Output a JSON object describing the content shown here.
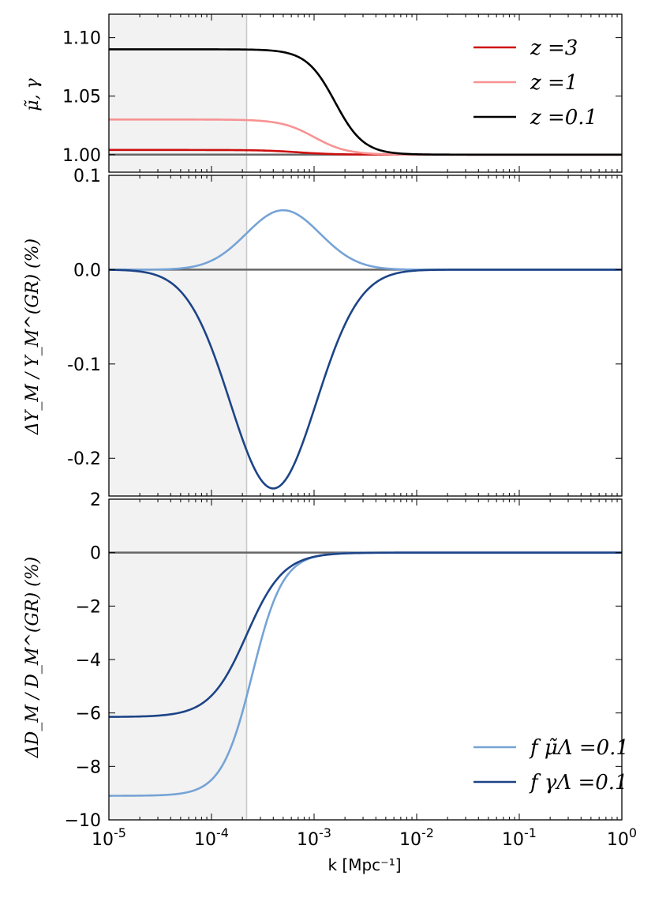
{
  "chart_data": [
    {
      "type": "line",
      "panel": "top",
      "ylabel": "μ̃, γ",
      "xscale": "log",
      "xlim": [
        1e-05,
        1
      ],
      "ylim": [
        0.985,
        1.12
      ],
      "yticks": [
        1.0,
        1.05,
        1.1
      ],
      "ytick_labels": [
        "1.00",
        "1.05",
        "1.10"
      ],
      "shaded_region_x": [
        1e-05,
        0.00022
      ],
      "reference_line_y": 1.0,
      "legend": {
        "position": "top-right"
      },
      "series": [
        {
          "name": "z=3",
          "legend_label": "z =3",
          "color": "#cc1010",
          "plateau": 1.004,
          "transition_k": 0.0007,
          "width": 0.35
        },
        {
          "name": "z=1",
          "legend_label": "z =1",
          "color": "#f79393",
          "plateau": 1.03,
          "transition_k": 0.001,
          "width": 0.32
        },
        {
          "name": "z=0.1",
          "legend_label": "z =0.1",
          "color": "#000000",
          "plateau": 1.09,
          "transition_k": 0.0016,
          "width": 0.28
        }
      ]
    },
    {
      "type": "line",
      "panel": "middle",
      "ylabel": "ΔY_M / Y_M^(GR) (%)",
      "xscale": "log",
      "xlim": [
        1e-05,
        1
      ],
      "ylim": [
        -0.24,
        0.1
      ],
      "yticks": [
        0.1,
        0.0,
        -0.1,
        -0.2
      ],
      "ytick_labels": [
        "0.1",
        "0.0",
        "-0.1",
        "-0.2"
      ],
      "shaded_region_x": [
        1e-05,
        0.00022
      ],
      "reference_line_y": 0.0,
      "series": [
        {
          "name": "f_μΛ=0.1",
          "color": "#76a3d6",
          "peak_value": 0.063,
          "peak_k": 0.0005,
          "width": 0.36
        },
        {
          "name": "f_γΛ=0.1",
          "color": "#1d4487",
          "peak_value": -0.232,
          "peak_k": 0.0004,
          "width": 0.42
        }
      ]
    },
    {
      "type": "line",
      "panel": "bottom",
      "xlabel": "k [Mpc⁻¹]",
      "ylabel": "ΔD_M / D_M^(GR) (%)",
      "xscale": "log",
      "xlim": [
        1e-05,
        1
      ],
      "ylim": [
        -10,
        2
      ],
      "yticks": [
        2,
        0,
        -2,
        -4,
        -6,
        -8,
        -10
      ],
      "ytick_labels": [
        "2",
        "0",
        "−2",
        "−4",
        "−6",
        "−8",
        "−10"
      ],
      "xtick_labels": [
        "10-5",
        "10-4",
        "10-3",
        "10-2",
        "10-1",
        "100"
      ],
      "shaded_region_x": [
        1e-05,
        0.00022
      ],
      "reference_line_y": 0.0,
      "legend": {
        "position": "bottom-right"
      },
      "series": [
        {
          "name": "f_μΛ=0.1",
          "legend_label": "f μ̃Λ =0.1",
          "color": "#76a3d6",
          "plateau": -9.1,
          "transition_k": 0.00025,
          "width": 0.3
        },
        {
          "name": "f_γΛ=0.1",
          "legend_label": "f γΛ =0.1",
          "color": "#1d4487",
          "plateau": -6.15,
          "transition_k": 0.00022,
          "width": 0.36
        }
      ]
    }
  ]
}
